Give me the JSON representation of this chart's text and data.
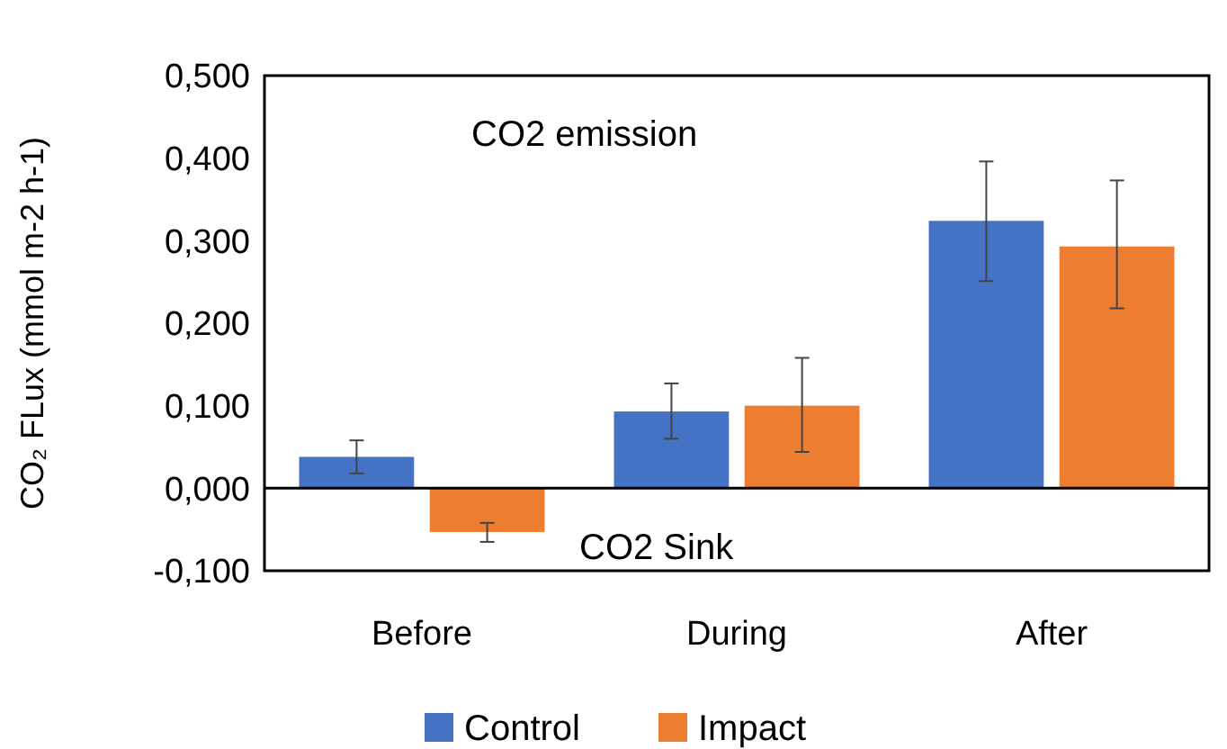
{
  "chart_data": {
    "type": "bar",
    "ylabel": "CO₂ FLux (mmol m-2 h-1)",
    "categories": [
      "Before",
      "During",
      "After"
    ],
    "series": [
      {
        "name": "Control",
        "color": "#4472c4",
        "values": [
          0.038,
          0.093,
          0.324
        ],
        "errors": [
          [
            0.018,
            0.058
          ],
          [
            0.06,
            0.127
          ],
          [
            0.251,
            0.396
          ]
        ]
      },
      {
        "name": "Impact",
        "color": "#ed7d31",
        "values": [
          -0.053,
          0.1,
          0.293
        ],
        "errors": [
          [
            -0.065,
            -0.042
          ],
          [
            0.044,
            0.158
          ],
          [
            0.218,
            0.373
          ]
        ]
      }
    ],
    "ylim": [
      -0.1,
      0.5
    ],
    "yticks": [
      {
        "value": -0.1,
        "label": "-0,100"
      },
      {
        "value": 0,
        "label": "0,000"
      },
      {
        "value": 0.1,
        "label": "0,100"
      },
      {
        "value": 0.2,
        "label": "0,200"
      },
      {
        "value": 0.3,
        "label": "0,300"
      },
      {
        "value": 0.4,
        "label": "0,400"
      },
      {
        "value": 0.5,
        "label": "0,500"
      }
    ],
    "annotations": [
      "CO2 emission",
      "CO2 Sink"
    ],
    "legend": "bottom"
  }
}
